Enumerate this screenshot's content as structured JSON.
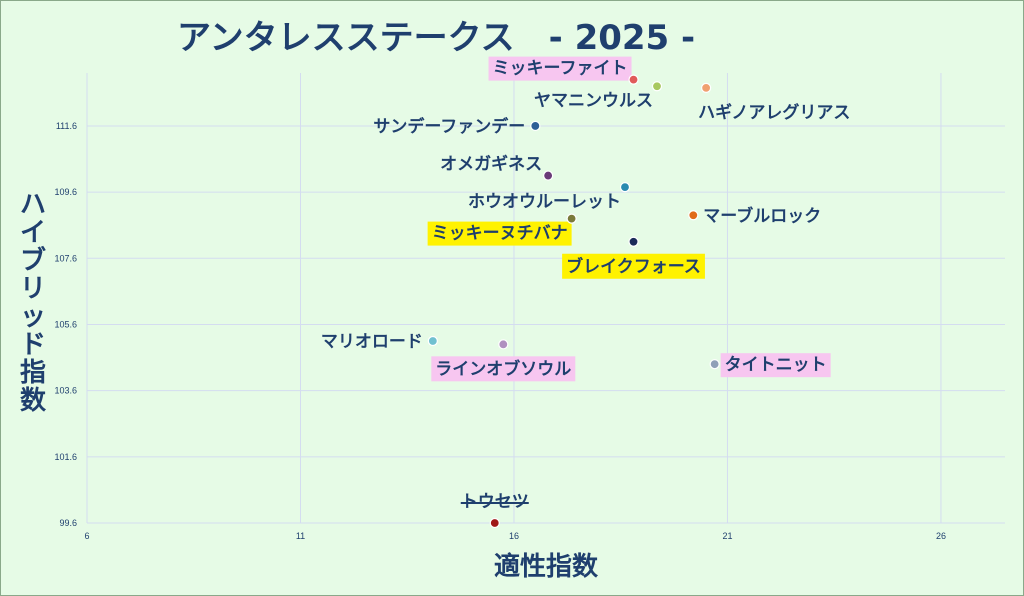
{
  "chart_data": {
    "type": "scatter",
    "title": "アンタレスステークス　- 2025 -",
    "xlabel": "適性指数",
    "ylabel": "ハイブリッド指数",
    "xlim": [
      6,
      27.5
    ],
    "ylim": [
      99.6,
      113.2
    ],
    "xticks": [
      6,
      11,
      16,
      21,
      26
    ],
    "yticks": [
      99.6,
      101.6,
      103.6,
      105.6,
      107.6,
      109.6,
      111.6
    ],
    "grid": true,
    "points": [
      {
        "name": "ミッキーファイト",
        "x": 18.8,
        "y": 113.0,
        "color": "#e05a5a",
        "highlight": "#f7c6f0",
        "label_pos": "top-left"
      },
      {
        "name": "ヤマニンウルス",
        "x": 19.35,
        "y": 112.8,
        "color": "#a8c860",
        "highlight": "",
        "label_pos": "bottom-left"
      },
      {
        "name": "ハギノアレグリアス",
        "x": 20.5,
        "y": 112.75,
        "color": "#f0a070",
        "highlight": "",
        "label_pos": "bottom-right"
      },
      {
        "name": "サンデーファンデー",
        "x": 16.5,
        "y": 111.6,
        "color": "#2e5e96",
        "highlight": "",
        "label_pos": "left"
      },
      {
        "name": "オメガギネス",
        "x": 16.8,
        "y": 110.1,
        "color": "#6a3a78",
        "highlight": "",
        "label_pos": "top-left"
      },
      {
        "name": "ホウオウルーレット",
        "x": 18.6,
        "y": 109.75,
        "color": "#2a8ab0",
        "highlight": "",
        "label_pos": "bottom-left"
      },
      {
        "name": "マーブルロック",
        "x": 20.2,
        "y": 108.9,
        "color": "#e06a1a",
        "highlight": "",
        "label_pos": "right"
      },
      {
        "name": "ミッキーヌチバナ",
        "x": 17.35,
        "y": 108.8,
        "color": "#7a7a3a",
        "highlight": "#fff200",
        "label_pos": "bottom-left"
      },
      {
        "name": "ブレイクフォース",
        "x": 18.8,
        "y": 108.1,
        "color": "#1a2a58",
        "highlight": "#fff200",
        "label_pos": "bottom"
      },
      {
        "name": "マリオロード",
        "x": 14.1,
        "y": 105.1,
        "color": "#70c0d0",
        "highlight": "",
        "label_pos": "left"
      },
      {
        "name": "ラインオブソウル",
        "x": 15.75,
        "y": 105.0,
        "color": "#b090c0",
        "highlight": "#f7c6f0",
        "label_pos": "bottom"
      },
      {
        "name": "タイトニット",
        "x": 20.7,
        "y": 104.4,
        "color": "#90a0b8",
        "highlight": "#f7c6f0",
        "label_pos": "right"
      },
      {
        "name": "トウセツ",
        "x": 15.55,
        "y": 99.6,
        "color": "#a01818",
        "highlight": "",
        "label_pos": "top",
        "strike": true
      }
    ]
  }
}
